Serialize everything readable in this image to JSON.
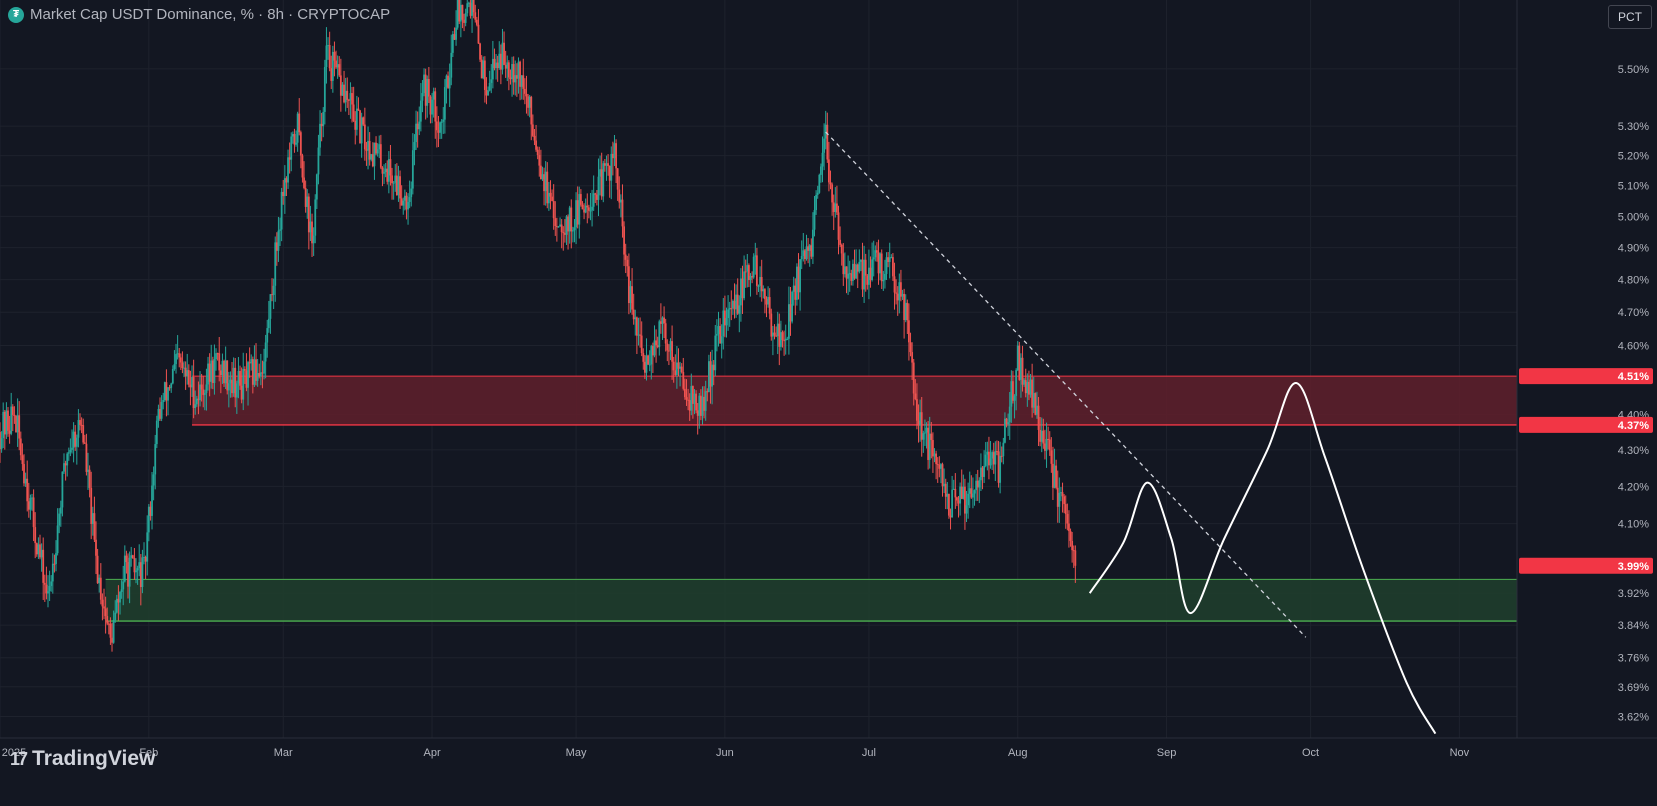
{
  "header": {
    "title": "Market Cap USDT Dominance, % · 8h · CRYPTOCAP",
    "scale_button": "PCT"
  },
  "branding": {
    "logo_mark": "17",
    "logo_text": "TradingView"
  },
  "colors": {
    "background": "#131722",
    "grid": "#1e222d",
    "up": "#26a69a",
    "down": "#ef5350",
    "resistance_zone": "#5c1f2b",
    "support_zone": "#1f3d2c",
    "text": "#b2b5be"
  },
  "chart_data": {
    "type": "candlestick",
    "interval": "8h",
    "symbol": "USDT.D",
    "y_unit": "%",
    "scale": "log",
    "y_range": [
      3.57,
      5.75
    ],
    "x_range": [
      "2025-01-01",
      "2025-11-13"
    ],
    "x_ticks": [
      {
        "date": "2025-01-01",
        "label": "2025"
      },
      {
        "date": "2025-02-01",
        "label": "Feb"
      },
      {
        "date": "2025-03-01",
        "label": "Mar"
      },
      {
        "date": "2025-04-01",
        "label": "Apr"
      },
      {
        "date": "2025-05-01",
        "label": "May"
      },
      {
        "date": "2025-06-01",
        "label": "Jun"
      },
      {
        "date": "2025-07-01",
        "label": "Jul"
      },
      {
        "date": "2025-08-01",
        "label": "Aug"
      },
      {
        "date": "2025-09-01",
        "label": "Sep"
      },
      {
        "date": "2025-10-01",
        "label": "Oct"
      },
      {
        "date": "2025-11-01",
        "label": "Nov"
      }
    ],
    "y_ticks": [
      "5.50%",
      "5.30%",
      "5.20%",
      "5.10%",
      "5.00%",
      "4.90%",
      "4.80%",
      "4.70%",
      "4.60%",
      "4.40%",
      "4.30%",
      "4.20%",
      "4.10%",
      "3.92%",
      "3.84%",
      "3.76%",
      "3.69%",
      "3.62%"
    ],
    "y_tick_values": [
      5.5,
      5.3,
      5.2,
      5.1,
      5.0,
      4.9,
      4.8,
      4.7,
      4.6,
      4.4,
      4.3,
      4.2,
      4.1,
      3.92,
      3.84,
      3.76,
      3.69,
      3.62
    ],
    "price_path": [
      [
        "2025-01-01",
        4.35
      ],
      [
        "2025-01-04",
        4.4
      ],
      [
        "2025-01-08",
        4.1
      ],
      [
        "2025-01-11",
        3.9
      ],
      [
        "2025-01-15",
        4.3
      ],
      [
        "2025-01-18",
        4.38
      ],
      [
        "2025-01-21",
        4.0
      ],
      [
        "2025-01-24",
        3.8
      ],
      [
        "2025-01-27",
        3.98
      ],
      [
        "2025-01-31",
        3.97
      ],
      [
        "2025-02-03",
        4.4
      ],
      [
        "2025-02-07",
        4.55
      ],
      [
        "2025-02-11",
        4.45
      ],
      [
        "2025-02-15",
        4.55
      ],
      [
        "2025-02-20",
        4.48
      ],
      [
        "2025-02-25",
        4.55
      ],
      [
        "2025-03-01",
        5.1
      ],
      [
        "2025-03-04",
        5.3
      ],
      [
        "2025-03-07",
        4.9
      ],
      [
        "2025-03-10",
        5.55
      ],
      [
        "2025-03-14",
        5.4
      ],
      [
        "2025-03-18",
        5.25
      ],
      [
        "2025-03-23",
        5.15
      ],
      [
        "2025-03-27",
        5.05
      ],
      [
        "2025-03-30",
        5.45
      ],
      [
        "2025-04-03",
        5.3
      ],
      [
        "2025-04-06",
        5.7
      ],
      [
        "2025-04-09",
        5.75
      ],
      [
        "2025-04-12",
        5.45
      ],
      [
        "2025-04-15",
        5.55
      ],
      [
        "2025-04-19",
        5.5
      ],
      [
        "2025-04-22",
        5.3
      ],
      [
        "2025-04-26",
        5.0
      ],
      [
        "2025-04-30",
        4.98
      ],
      [
        "2025-05-03",
        5.05
      ],
      [
        "2025-05-06",
        5.1
      ],
      [
        "2025-05-09",
        5.2
      ],
      [
        "2025-05-12",
        4.75
      ],
      [
        "2025-05-15",
        4.55
      ],
      [
        "2025-05-19",
        4.65
      ],
      [
        "2025-05-23",
        4.5
      ],
      [
        "2025-05-27",
        4.4
      ],
      [
        "2025-05-31",
        4.65
      ],
      [
        "2025-06-04",
        4.75
      ],
      [
        "2025-06-07",
        4.85
      ],
      [
        "2025-06-10",
        4.7
      ],
      [
        "2025-06-13",
        4.6
      ],
      [
        "2025-06-16",
        4.8
      ],
      [
        "2025-06-19",
        4.9
      ],
      [
        "2025-06-22",
        5.25
      ],
      [
        "2025-06-25",
        4.88
      ],
      [
        "2025-06-28",
        4.8
      ],
      [
        "2025-07-02",
        4.85
      ],
      [
        "2025-07-06",
        4.82
      ],
      [
        "2025-07-09",
        4.7
      ],
      [
        "2025-07-11",
        4.4
      ],
      [
        "2025-07-15",
        4.25
      ],
      [
        "2025-07-18",
        4.15
      ],
      [
        "2025-07-22",
        4.18
      ],
      [
        "2025-07-25",
        4.28
      ],
      [
        "2025-07-28",
        4.25
      ],
      [
        "2025-08-01",
        4.55
      ],
      [
        "2025-08-04",
        4.45
      ],
      [
        "2025-08-07",
        4.3
      ],
      [
        "2025-08-10",
        4.15
      ],
      [
        "2025-08-13",
        3.99
      ]
    ],
    "price_labels": [
      {
        "value": 4.51,
        "label": "4.51%",
        "color": "#f23645"
      },
      {
        "value": 4.37,
        "label": "4.37%",
        "color": "#f23645"
      },
      {
        "value": 3.99,
        "label": "3.99%",
        "color": "#f23645"
      }
    ],
    "zones": [
      {
        "kind": "resistance",
        "from": 4.37,
        "to": 4.51,
        "start": "2025-02-10"
      },
      {
        "kind": "support",
        "from": 3.85,
        "to": 3.955,
        "start": "2025-01-23"
      }
    ],
    "trendline": {
      "start": [
        "2025-06-22",
        5.28
      ],
      "end": [
        "2025-09-30",
        3.81
      ],
      "style": "dashed"
    },
    "projection": [
      [
        "2025-08-16",
        3.92
      ],
      [
        "2025-08-23",
        4.05
      ],
      [
        "2025-08-28",
        4.21
      ],
      [
        "2025-09-02",
        4.06
      ],
      [
        "2025-09-06",
        3.87
      ],
      [
        "2025-09-13",
        4.06
      ],
      [
        "2025-09-22",
        4.3
      ],
      [
        "2025-09-28",
        4.49
      ],
      [
        "2025-10-04",
        4.28
      ],
      [
        "2025-10-12",
        3.98
      ],
      [
        "2025-10-21",
        3.7
      ],
      [
        "2025-10-27",
        3.58
      ]
    ],
    "grid": true
  }
}
